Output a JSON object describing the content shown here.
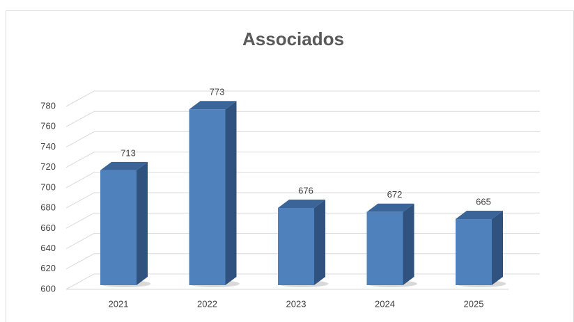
{
  "chart_data": {
    "type": "bar3d",
    "title": "Associados",
    "categories": [
      "2021",
      "2022",
      "2023",
      "2024",
      "2025"
    ],
    "values": [
      713,
      773,
      676,
      672,
      665
    ],
    "color": "#4f81bd",
    "ylim": [
      600,
      780
    ],
    "yticks": [
      600,
      620,
      640,
      660,
      680,
      700,
      720,
      740,
      760,
      780
    ],
    "grid": true
  }
}
